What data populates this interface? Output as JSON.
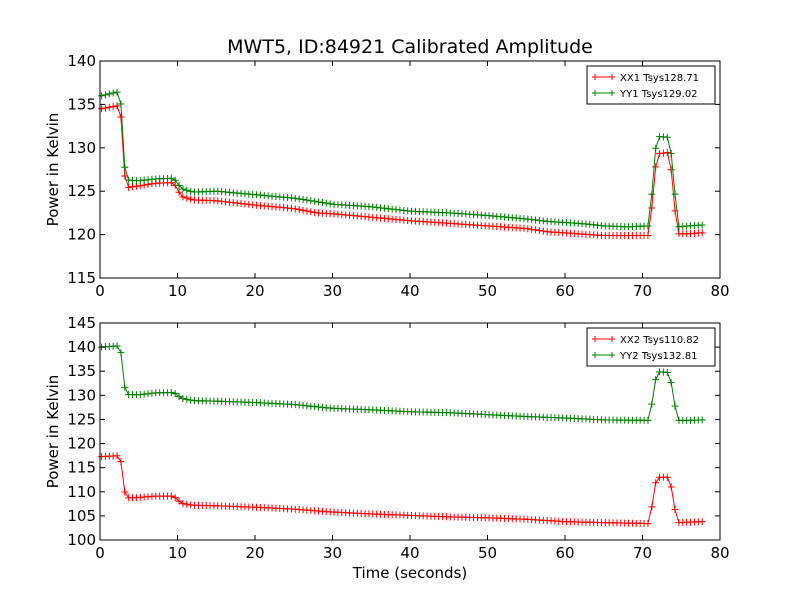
{
  "figure": {
    "title": "MWT5, ID:84921 Calibrated Amplitude"
  },
  "chart_data": [
    {
      "type": "line",
      "title": "MWT5, ID:84921 Calibrated Amplitude",
      "xlabel": "",
      "ylabel": "Power in Kelvin",
      "xlim": [
        0,
        80
      ],
      "ylim": [
        115,
        140
      ],
      "xticks": [
        "0",
        "10",
        "20",
        "30",
        "40",
        "50",
        "60",
        "70",
        "80"
      ],
      "yticks": [
        "115",
        "120",
        "125",
        "130",
        "135",
        "140"
      ],
      "grid": false,
      "legend": "top-right",
      "series": [
        {
          "name": "XX1 Tsys128.71",
          "color": "#ff0000",
          "knots": [
            [
              0.2,
              134.5
            ],
            [
              2.6,
              134.9
            ],
            [
              3.3,
              125.4
            ],
            [
              5,
              125.6
            ],
            [
              7,
              125.9
            ],
            [
              9.5,
              126.0
            ],
            [
              10.5,
              124.4
            ],
            [
              12,
              124.0
            ],
            [
              15,
              123.9
            ],
            [
              20,
              123.4
            ],
            [
              25,
              123.0
            ],
            [
              28,
              122.5
            ],
            [
              30,
              122.4
            ],
            [
              35,
              122.0
            ],
            [
              40,
              121.6
            ],
            [
              45,
              121.3
            ],
            [
              50,
              121.0
            ],
            [
              55,
              120.7
            ],
            [
              58,
              120.3
            ],
            [
              60,
              120.2
            ],
            [
              63,
              120.0
            ],
            [
              65,
              119.9
            ],
            [
              68,
              119.9
            ],
            [
              70.9,
              119.9
            ],
            [
              71.6,
              127.3
            ],
            [
              72,
              129.3
            ],
            [
              73.5,
              129.5
            ],
            [
              74.1,
              123.4
            ],
            [
              74.6,
              120.1
            ],
            [
              76,
              120.1
            ],
            [
              77.5,
              120.2
            ]
          ]
        },
        {
          "name": "YY1 Tsys129.02",
          "color": "#008000",
          "knots": [
            [
              0.2,
              136.0
            ],
            [
              2.6,
              136.5
            ],
            [
              3.3,
              126.3
            ],
            [
              5,
              126.2
            ],
            [
              7,
              126.4
            ],
            [
              9.5,
              126.5
            ],
            [
              10.5,
              125.3
            ],
            [
              12,
              124.9
            ],
            [
              15,
              125.0
            ],
            [
              20,
              124.6
            ],
            [
              25,
              124.2
            ],
            [
              28,
              123.8
            ],
            [
              30,
              123.5
            ],
            [
              35,
              123.2
            ],
            [
              40,
              122.7
            ],
            [
              45,
              122.5
            ],
            [
              50,
              122.2
            ],
            [
              55,
              121.8
            ],
            [
              58,
              121.5
            ],
            [
              60,
              121.4
            ],
            [
              63,
              121.2
            ],
            [
              65,
              121.0
            ],
            [
              68,
              120.9
            ],
            [
              70.9,
              121.0
            ],
            [
              71.6,
              129.5
            ],
            [
              72,
              131.3
            ],
            [
              73.5,
              131.2
            ],
            [
              74.1,
              125.6
            ],
            [
              74.6,
              120.9
            ],
            [
              76,
              121.0
            ],
            [
              77.5,
              121.1
            ]
          ]
        }
      ]
    },
    {
      "type": "line",
      "title": "",
      "xlabel": "Time (seconds)",
      "ylabel": "Power in Kelvin",
      "xlim": [
        0,
        80
      ],
      "ylim": [
        100,
        145
      ],
      "xticks": [
        "0",
        "10",
        "20",
        "30",
        "40",
        "50",
        "60",
        "70",
        "80"
      ],
      "yticks": [
        "100",
        "105",
        "110",
        "115",
        "120",
        "125",
        "130",
        "135",
        "140",
        "145"
      ],
      "grid": false,
      "legend": "top-right",
      "series": [
        {
          "name": "XX2 Tsys110.82",
          "color": "#ff0000",
          "knots": [
            [
              0.2,
              117.3
            ],
            [
              2.6,
              117.5
            ],
            [
              3.3,
              108.7
            ],
            [
              5,
              108.8
            ],
            [
              7,
              109.1
            ],
            [
              9.5,
              109.1
            ],
            [
              10.5,
              107.6
            ],
            [
              12,
              107.2
            ],
            [
              15,
              107.1
            ],
            [
              20,
              106.8
            ],
            [
              25,
              106.4
            ],
            [
              30,
              105.8
            ],
            [
              35,
              105.4
            ],
            [
              40,
              105.1
            ],
            [
              45,
              104.8
            ],
            [
              50,
              104.6
            ],
            [
              55,
              104.3
            ],
            [
              60,
              103.8
            ],
            [
              65,
              103.6
            ],
            [
              70.9,
              103.4
            ],
            [
              71.6,
              111.5
            ],
            [
              72,
              113.0
            ],
            [
              73.5,
              113.0
            ],
            [
              74.1,
              107.0
            ],
            [
              74.6,
              103.6
            ],
            [
              76,
              103.7
            ],
            [
              77.5,
              103.8
            ]
          ]
        },
        {
          "name": "YY2 Tsys132.81",
          "color": "#008000",
          "knots": [
            [
              0.2,
              140.0
            ],
            [
              2.6,
              140.3
            ],
            [
              3.3,
              130.2
            ],
            [
              5,
              130.1
            ],
            [
              7,
              130.5
            ],
            [
              9.5,
              130.6
            ],
            [
              10.5,
              129.4
            ],
            [
              12,
              128.9
            ],
            [
              15,
              128.8
            ],
            [
              20,
              128.5
            ],
            [
              25,
              128.1
            ],
            [
              30,
              127.3
            ],
            [
              35,
              127.0
            ],
            [
              40,
              126.6
            ],
            [
              45,
              126.4
            ],
            [
              50,
              126.0
            ],
            [
              55,
              125.6
            ],
            [
              60,
              125.3
            ],
            [
              65,
              124.9
            ],
            [
              70.9,
              124.8
            ],
            [
              71.6,
              132.7
            ],
            [
              72,
              134.9
            ],
            [
              73.5,
              134.7
            ],
            [
              74.1,
              128.5
            ],
            [
              74.6,
              124.8
            ],
            [
              76,
              124.8
            ],
            [
              77.5,
              124.9
            ]
          ]
        }
      ]
    }
  ]
}
